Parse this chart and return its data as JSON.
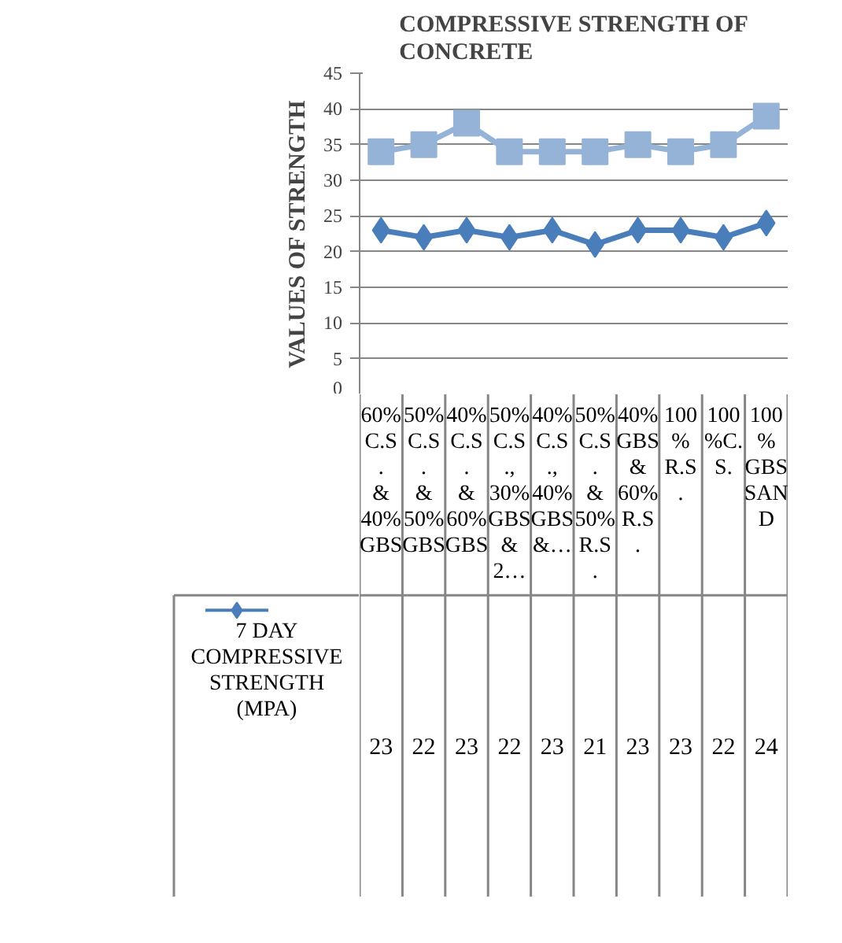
{
  "chart_data": {
    "type": "line",
    "title": "COMPRESSIVE STRENGTH OF CONCRETE",
    "ylabel": "VALUES OF STRENGTH",
    "categories": [
      "60% C.S. & 40% GBS",
      "50%C.S. & 50% GBS",
      "40%C.S. & 60% GBS",
      "50%C.S., 30% GBS & 2…",
      "40%C.S., 40% GBS &…",
      "50%C.S. & 50% R.S.",
      "40% GBS & 60% R.S.",
      "100% R.S.",
      "100%C.S.",
      "100% GBS SAND"
    ],
    "series": [
      {
        "name": "7 DAY COMPRESSIVE STRENGTH (MPA)",
        "color": "#4a7ebb",
        "marker": "diamond",
        "values": [
          23,
          22,
          23,
          22,
          23,
          21,
          23,
          23,
          22,
          24
        ],
        "value_labels": [
          "23",
          "22",
          "23",
          "22",
          "23",
          "21",
          "23",
          "23",
          "22",
          "24"
        ]
      },
      {
        "color": "#95b3d7",
        "marker": "square",
        "values": [
          34,
          35,
          38,
          34,
          34,
          34,
          35,
          34,
          35,
          39
        ]
      }
    ],
    "ylim": [
      0,
      45
    ],
    "yticks": [
      0,
      5,
      10,
      15,
      20,
      25,
      30,
      35,
      40,
      45
    ],
    "grid": "y",
    "legend": "bottom"
  }
}
